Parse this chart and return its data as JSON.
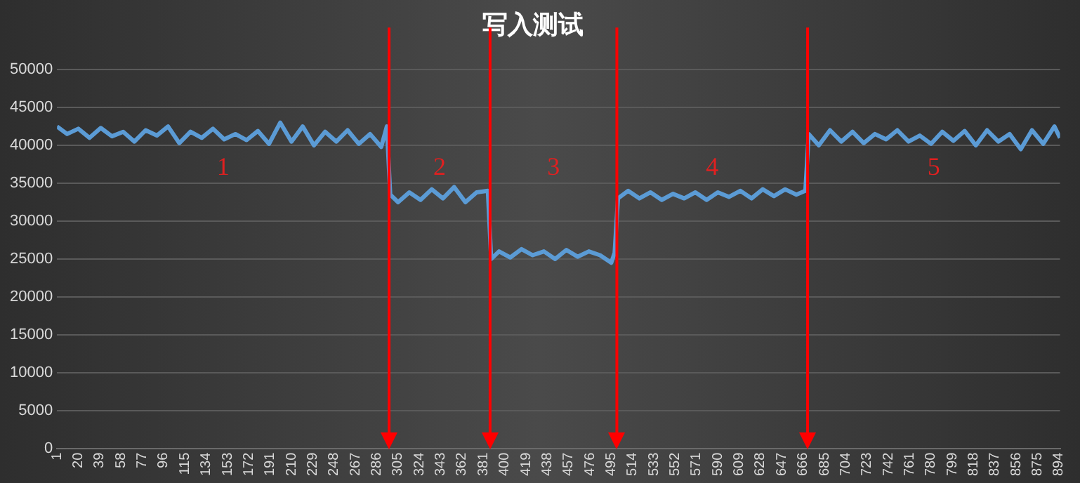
{
  "chart_data": {
    "type": "line",
    "title": "写入测试",
    "x": [
      1,
      10,
      20,
      30,
      40,
      50,
      60,
      70,
      80,
      90,
      100,
      110,
      120,
      130,
      140,
      150,
      160,
      170,
      180,
      190,
      200,
      210,
      220,
      230,
      240,
      250,
      260,
      270,
      280,
      290,
      295,
      298,
      305,
      315,
      325,
      335,
      345,
      355,
      365,
      375,
      385,
      388,
      395,
      405,
      415,
      425,
      435,
      445,
      455,
      465,
      475,
      485,
      495,
      498,
      501,
      510,
      520,
      530,
      540,
      550,
      560,
      570,
      580,
      590,
      600,
      610,
      620,
      630,
      640,
      650,
      660,
      668,
      671,
      680,
      690,
      700,
      710,
      720,
      730,
      740,
      750,
      760,
      770,
      780,
      790,
      800,
      810,
      820,
      830,
      840,
      850,
      860,
      870,
      880,
      890,
      895
    ],
    "series": [
      {
        "color": "#5b9bd5",
        "values": [
          42500,
          41500,
          42200,
          41000,
          42300,
          41200,
          41800,
          40500,
          42000,
          41300,
          42500,
          40300,
          41800,
          41000,
          42200,
          40800,
          41500,
          40700,
          41900,
          40200,
          43000,
          40500,
          42500,
          40000,
          41800,
          40500,
          42000,
          40200,
          41500,
          39800,
          42500,
          33500,
          32500,
          33800,
          32800,
          34200,
          33000,
          34500,
          32500,
          33800,
          34000,
          25000,
          26000,
          25200,
          26300,
          25500,
          26000,
          25000,
          26200,
          25300,
          26000,
          25500,
          24500,
          25800,
          33000,
          34000,
          33000,
          33800,
          32800,
          33600,
          33000,
          33800,
          32800,
          33800,
          33200,
          34000,
          33000,
          34200,
          33300,
          34200,
          33500,
          34000,
          41500,
          40000,
          42000,
          40500,
          41800,
          40300,
          41500,
          40800,
          42000,
          40500,
          41300,
          40200,
          41800,
          40600,
          41900,
          40000,
          42000,
          40500,
          41500,
          39500,
          42000,
          40200,
          42500,
          41000
        ]
      }
    ],
    "xlim": [
      1,
      895
    ],
    "xticks": [
      1,
      20,
      39,
      58,
      77,
      96,
      115,
      134,
      153,
      172,
      191,
      210,
      229,
      248,
      267,
      286,
      305,
      324,
      343,
      362,
      381,
      400,
      419,
      438,
      457,
      476,
      495,
      514,
      533,
      552,
      571,
      590,
      609,
      628,
      647,
      666,
      685,
      704,
      723,
      742,
      761,
      780,
      799,
      818,
      837,
      856,
      875,
      894
    ],
    "ylim": [
      0,
      50000
    ],
    "yticks": [
      0,
      5000,
      10000,
      15000,
      20000,
      25000,
      30000,
      35000,
      40000,
      45000,
      50000
    ],
    "grid": "y",
    "marker": "none",
    "line_style": "solid",
    "ref_lines": [
      {
        "axis": "x",
        "value": 297,
        "color": "#ff0000"
      },
      {
        "axis": "x",
        "value": 387,
        "color": "#ff0000"
      },
      {
        "axis": "x",
        "value": 500,
        "color": "#ff0000"
      },
      {
        "axis": "x",
        "value": 670,
        "color": "#ff0000"
      }
    ],
    "annotations": [
      "1",
      "2",
      "3",
      "4",
      "5"
    ]
  }
}
